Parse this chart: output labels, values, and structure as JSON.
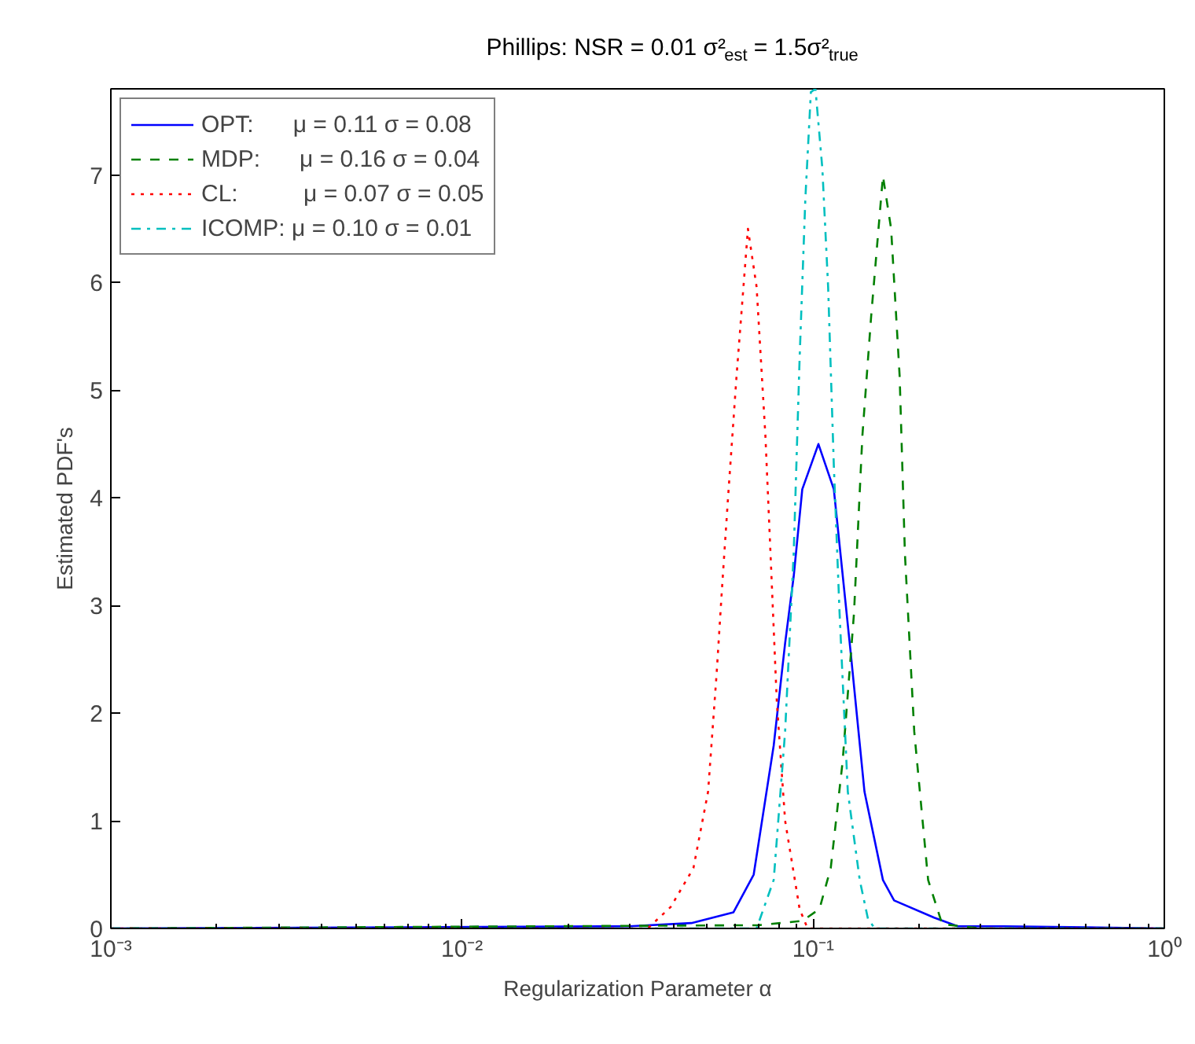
{
  "chart_data": {
    "type": "line",
    "title": "Phillips: NSR = 0.01 σ²$_{est}$ = 1.5σ²$_{true}$",
    "xlabel": "Regularization Parameter α",
    "ylabel": "Estimated PDF's",
    "log": "x",
    "grid": false,
    "legend": "top left",
    "marker": "none",
    "xlim": [
      0.001,
      1
    ],
    "xticks": [
      {
        "value": 0.001,
        "label": "10⁻³"
      },
      {
        "value": 0.01,
        "label": "10⁻²"
      },
      {
        "value": 0.1,
        "label": "10⁻¹"
      },
      {
        "value": 1,
        "label": "10⁰"
      }
    ],
    "ylim": [
      0,
      7.8
    ],
    "yticks": [
      0,
      1,
      2,
      3,
      4,
      5,
      6,
      7
    ],
    "series": [
      {
        "name": "OPT:      μ = 0.11 σ = 0.08",
        "color": "#0000ff",
        "line_style": "solid",
        "x": [
          0.001,
          0.03,
          0.045,
          0.0593,
          0.0677,
          0.0772,
          0.0832,
          0.088,
          0.0931,
          0.1035,
          0.1145,
          0.128,
          0.14,
          0.158,
          0.17,
          0.221,
          0.258,
          0.35,
          0.6,
          1
        ],
        "values": [
          0,
          0.02,
          0.05,
          0.15,
          0.5,
          1.7,
          2.65,
          3.27,
          4.08,
          4.5,
          4.08,
          2.55,
          1.27,
          0.45,
          0.26,
          0.1,
          0.02,
          0.02,
          0.01,
          0
        ]
      },
      {
        "name": "MDP:      μ = 0.16 σ = 0.04",
        "color": "#008000",
        "line_style": "dashed",
        "x": [
          0.001,
          0.07,
          0.0931,
          0.1042,
          0.1122,
          0.1213,
          0.1307,
          0.1381,
          0.1462,
          0.158,
          0.1667,
          0.1763,
          0.1825,
          0.194,
          0.2125,
          0.233,
          0.3,
          1
        ],
        "values": [
          0,
          0.03,
          0.07,
          0.18,
          0.56,
          1.55,
          2.93,
          4.58,
          5.68,
          6.99,
          6.5,
          5.13,
          3.48,
          1.83,
          0.45,
          0.04,
          0,
          0
        ]
      },
      {
        "name": "CL:          μ = 0.07 σ = 0.05",
        "color": "#ff0000",
        "line_style": "dotted",
        "x": [
          0.001,
          0.0338,
          0.0393,
          0.0456,
          0.0502,
          0.0531,
          0.0551,
          0.0573,
          0.0605,
          0.0652,
          0.069,
          0.0731,
          0.0756,
          0.0788,
          0.0832,
          0.0915,
          0.0964,
          1
        ],
        "values": [
          0,
          0,
          0.2,
          0.56,
          1.27,
          2.37,
          3.2,
          4.03,
          5.13,
          6.5,
          5.96,
          4.58,
          3.48,
          2.1,
          1.0,
          0.18,
          0,
          0
        ]
      },
      {
        "name": "ICOMP: μ = 0.10 σ = 0.01",
        "color": "#00bfbf",
        "line_style": "dashdot",
        "x": [
          0.001,
          0.069,
          0.0772,
          0.0832,
          0.088,
          0.0915,
          0.095,
          0.0985,
          0.1015,
          0.1062,
          0.1103,
          0.1145,
          0.1189,
          0.1255,
          0.1357,
          0.1432,
          0.1497,
          1
        ],
        "values": [
          0,
          0,
          0.45,
          1.83,
          3.48,
          5.3,
          6.78,
          7.77,
          7.8,
          7.06,
          5.96,
          4.3,
          2.93,
          1.27,
          0.45,
          0.09,
          0,
          0
        ]
      }
    ]
  }
}
